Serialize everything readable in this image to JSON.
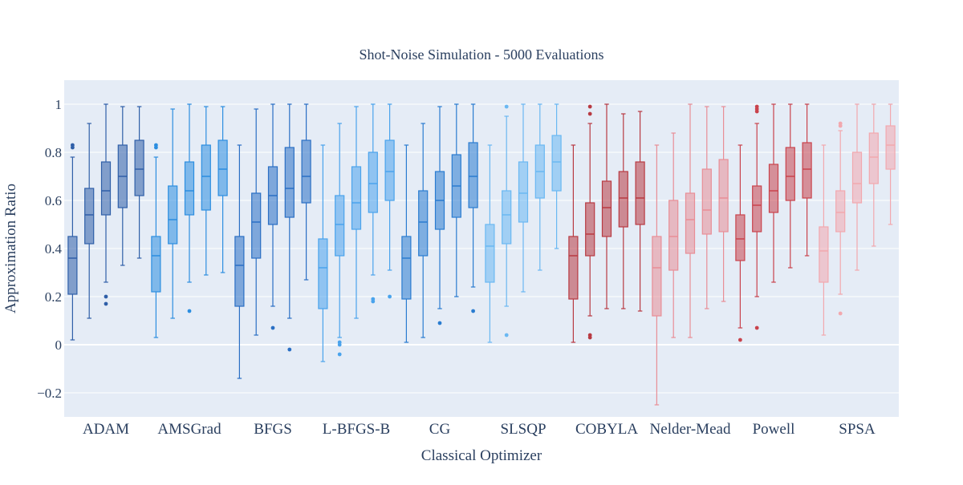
{
  "chart_data": {
    "type": "box",
    "title": "Shot-Noise Simulation - 5000 Evaluations",
    "xlabel": "Classical Optimizer",
    "ylabel": "Approximation Ratio",
    "ylim": [
      -0.3,
      1.1
    ],
    "y_ticks": [
      -0.2,
      0,
      0.2,
      0.4,
      0.6,
      0.8,
      1
    ],
    "y_tick_labels": [
      "−0.2",
      "0",
      "0.2",
      "0.4",
      "0.6",
      "0.8",
      "1"
    ],
    "plot_background": "#e5ecf6",
    "grid": true,
    "categories": [
      {
        "label": "ADAM",
        "color": "#2f5fa8",
        "boxes": [
          {
            "min": 0.02,
            "q1": 0.21,
            "median": 0.36,
            "q3": 0.45,
            "max": 0.78,
            "outliers": [
              0.82,
              0.83
            ]
          },
          {
            "min": 0.11,
            "q1": 0.42,
            "median": 0.54,
            "q3": 0.65,
            "max": 0.92,
            "outliers": []
          },
          {
            "min": 0.26,
            "q1": 0.54,
            "median": 0.64,
            "q3": 0.76,
            "max": 1.0,
            "outliers": [
              0.17,
              0.2
            ]
          },
          {
            "min": 0.33,
            "q1": 0.57,
            "median": 0.7,
            "q3": 0.83,
            "max": 0.99,
            "outliers": []
          },
          {
            "min": 0.36,
            "q1": 0.62,
            "median": 0.73,
            "q3": 0.85,
            "max": 0.99,
            "outliers": []
          }
        ]
      },
      {
        "label": "AMSGrad",
        "color": "#2c8ee0",
        "boxes": [
          {
            "min": 0.03,
            "q1": 0.22,
            "median": 0.37,
            "q3": 0.45,
            "max": 0.78,
            "outliers": [
              0.82,
              0.83
            ]
          },
          {
            "min": 0.11,
            "q1": 0.42,
            "median": 0.52,
            "q3": 0.66,
            "max": 0.98,
            "outliers": []
          },
          {
            "min": 0.26,
            "q1": 0.54,
            "median": 0.64,
            "q3": 0.76,
            "max": 1.0,
            "outliers": [
              0.14
            ]
          },
          {
            "min": 0.29,
            "q1": 0.56,
            "median": 0.7,
            "q3": 0.83,
            "max": 0.99,
            "outliers": []
          },
          {
            "min": 0.3,
            "q1": 0.62,
            "median": 0.73,
            "q3": 0.85,
            "max": 0.99,
            "outliers": []
          }
        ]
      },
      {
        "label": "BFGS",
        "color": "#2a6fc4",
        "boxes": [
          {
            "min": -0.14,
            "q1": 0.16,
            "median": 0.33,
            "q3": 0.45,
            "max": 0.83,
            "outliers": []
          },
          {
            "min": 0.04,
            "q1": 0.36,
            "median": 0.51,
            "q3": 0.63,
            "max": 0.98,
            "outliers": []
          },
          {
            "min": 0.16,
            "q1": 0.5,
            "median": 0.62,
            "q3": 0.74,
            "max": 1.0,
            "outliers": [
              0.07
            ]
          },
          {
            "min": 0.11,
            "q1": 0.53,
            "median": 0.65,
            "q3": 0.82,
            "max": 1.0,
            "outliers": [
              -0.02
            ]
          },
          {
            "min": 0.27,
            "q1": 0.59,
            "median": 0.7,
            "q3": 0.85,
            "max": 1.0,
            "outliers": []
          }
        ]
      },
      {
        "label": "L-BFGS-B",
        "color": "#4aa3ec",
        "boxes": [
          {
            "min": -0.07,
            "q1": 0.15,
            "median": 0.32,
            "q3": 0.44,
            "max": 0.83,
            "outliers": []
          },
          {
            "min": 0.03,
            "q1": 0.37,
            "median": 0.5,
            "q3": 0.62,
            "max": 0.92,
            "outliers": [
              -0.04,
              0.0,
              0.01
            ]
          },
          {
            "min": 0.11,
            "q1": 0.48,
            "median": 0.59,
            "q3": 0.74,
            "max": 0.99,
            "outliers": []
          },
          {
            "min": 0.29,
            "q1": 0.55,
            "median": 0.67,
            "q3": 0.8,
            "max": 1.0,
            "outliers": [
              0.18,
              0.19
            ]
          },
          {
            "min": 0.31,
            "q1": 0.6,
            "median": 0.72,
            "q3": 0.85,
            "max": 1.0,
            "outliers": [
              0.2
            ]
          }
        ]
      },
      {
        "label": "CG",
        "color": "#2a7cd0",
        "boxes": [
          {
            "min": 0.01,
            "q1": 0.19,
            "median": 0.36,
            "q3": 0.45,
            "max": 0.83,
            "outliers": []
          },
          {
            "min": 0.03,
            "q1": 0.37,
            "median": 0.51,
            "q3": 0.64,
            "max": 0.92,
            "outliers": []
          },
          {
            "min": 0.15,
            "q1": 0.48,
            "median": 0.6,
            "q3": 0.72,
            "max": 0.99,
            "outliers": [
              0.09
            ]
          },
          {
            "min": 0.2,
            "q1": 0.53,
            "median": 0.66,
            "q3": 0.79,
            "max": 1.0,
            "outliers": []
          },
          {
            "min": 0.24,
            "q1": 0.57,
            "median": 0.7,
            "q3": 0.84,
            "max": 1.0,
            "outliers": [
              0.14
            ]
          }
        ]
      },
      {
        "label": "SLSQP",
        "color": "#6ab8f2",
        "boxes": [
          {
            "min": 0.01,
            "q1": 0.26,
            "median": 0.41,
            "q3": 0.5,
            "max": 0.83,
            "outliers": []
          },
          {
            "min": 0.16,
            "q1": 0.42,
            "median": 0.54,
            "q3": 0.64,
            "max": 0.95,
            "outliers": [
              0.04,
              0.99
            ]
          },
          {
            "min": 0.22,
            "q1": 0.51,
            "median": 0.63,
            "q3": 0.76,
            "max": 1.0,
            "outliers": []
          },
          {
            "min": 0.31,
            "q1": 0.61,
            "median": 0.72,
            "q3": 0.83,
            "max": 1.0,
            "outliers": []
          },
          {
            "min": 0.4,
            "q1": 0.64,
            "median": 0.76,
            "q3": 0.87,
            "max": 1.0,
            "outliers": []
          }
        ]
      },
      {
        "label": "COBYLA",
        "color": "#b83a42",
        "boxes": [
          {
            "min": 0.01,
            "q1": 0.19,
            "median": 0.37,
            "q3": 0.45,
            "max": 0.83,
            "outliers": []
          },
          {
            "min": 0.12,
            "q1": 0.37,
            "median": 0.46,
            "q3": 0.59,
            "max": 0.92,
            "outliers": [
              0.03,
              0.04,
              0.96,
              0.99
            ]
          },
          {
            "min": 0.15,
            "q1": 0.45,
            "median": 0.57,
            "q3": 0.68,
            "max": 1.0,
            "outliers": []
          },
          {
            "min": 0.15,
            "q1": 0.49,
            "median": 0.61,
            "q3": 0.72,
            "max": 0.96,
            "outliers": []
          },
          {
            "min": 0.14,
            "q1": 0.5,
            "median": 0.61,
            "q3": 0.76,
            "max": 0.97,
            "outliers": []
          }
        ]
      },
      {
        "label": "Nelder-Mead",
        "color": "#e88e96",
        "boxes": [
          {
            "min": -0.25,
            "q1": 0.12,
            "median": 0.32,
            "q3": 0.45,
            "max": 0.83,
            "outliers": []
          },
          {
            "min": 0.03,
            "q1": 0.31,
            "median": 0.45,
            "q3": 0.6,
            "max": 0.88,
            "outliers": []
          },
          {
            "min": 0.03,
            "q1": 0.38,
            "median": 0.52,
            "q3": 0.63,
            "max": 1.0,
            "outliers": []
          },
          {
            "min": 0.15,
            "q1": 0.46,
            "median": 0.56,
            "q3": 0.73,
            "max": 0.99,
            "outliers": []
          },
          {
            "min": 0.18,
            "q1": 0.47,
            "median": 0.61,
            "q3": 0.77,
            "max": 0.99,
            "outliers": []
          }
        ]
      },
      {
        "label": "Powell",
        "color": "#c9434c",
        "boxes": [
          {
            "min": 0.07,
            "q1": 0.35,
            "median": 0.44,
            "q3": 0.54,
            "max": 0.83,
            "outliers": [
              0.02
            ]
          },
          {
            "min": 0.2,
            "q1": 0.47,
            "median": 0.58,
            "q3": 0.66,
            "max": 0.92,
            "outliers": [
              0.07,
              0.97,
              0.98,
              0.99
            ]
          },
          {
            "min": 0.26,
            "q1": 0.55,
            "median": 0.64,
            "q3": 0.75,
            "max": 1.0,
            "outliers": []
          },
          {
            "min": 0.32,
            "q1": 0.6,
            "median": 0.7,
            "q3": 0.82,
            "max": 1.0,
            "outliers": []
          },
          {
            "min": 0.37,
            "q1": 0.61,
            "median": 0.73,
            "q3": 0.84,
            "max": 1.0,
            "outliers": []
          }
        ]
      },
      {
        "label": "SPSA",
        "color": "#f2a8ae",
        "boxes": [
          {
            "min": 0.04,
            "q1": 0.26,
            "median": 0.39,
            "q3": 0.49,
            "max": 0.83,
            "outliers": []
          },
          {
            "min": 0.21,
            "q1": 0.47,
            "median": 0.55,
            "q3": 0.64,
            "max": 0.89,
            "outliers": [
              0.13,
              0.91,
              0.92
            ]
          },
          {
            "min": 0.31,
            "q1": 0.59,
            "median": 0.67,
            "q3": 0.8,
            "max": 1.0,
            "outliers": []
          },
          {
            "min": 0.41,
            "q1": 0.67,
            "median": 0.78,
            "q3": 0.88,
            "max": 1.0,
            "outliers": []
          },
          {
            "min": 0.5,
            "q1": 0.73,
            "median": 0.83,
            "q3": 0.91,
            "max": 1.0,
            "outliers": []
          }
        ]
      }
    ]
  }
}
